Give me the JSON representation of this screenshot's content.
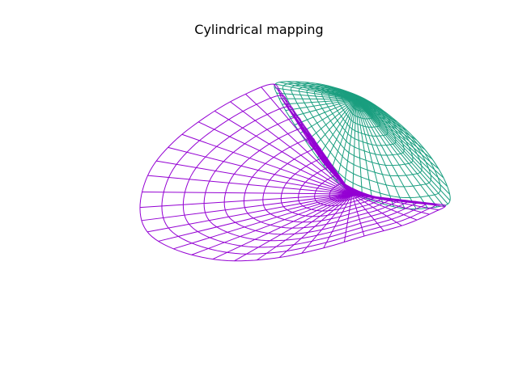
{
  "title": "Cylindrical mapping",
  "chart_data": {
    "type": "surface-wireframe",
    "title": "Cylindrical mapping",
    "series": [
      {
        "name": "",
        "color": "#1a9e7f",
        "radial_lines": 48,
        "rings": 12
      },
      {
        "name": "",
        "color": "#9400d3",
        "radial_lines": 48,
        "rings": 12
      }
    ]
  }
}
